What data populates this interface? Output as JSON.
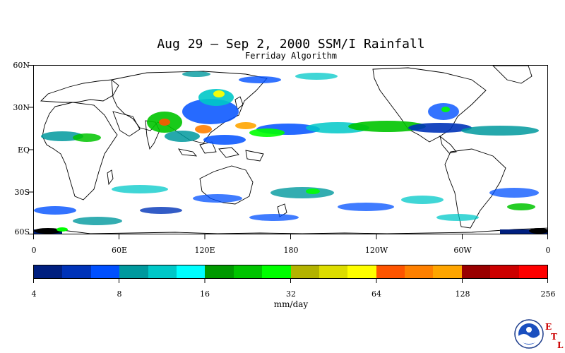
{
  "title": "Aug 29 – Sep 2, 2000 SSM/I Rainfall",
  "subtitle": "Ferriday Algorithm",
  "x_axis_labels": [
    "0",
    "60E",
    "120E",
    "180",
    "120W",
    "60W",
    "0"
  ],
  "y_axis_labels": [
    "60N",
    "30N",
    "EQ",
    "30S",
    "60S"
  ],
  "colorbar": {
    "colors": [
      "#001f7f",
      "#0033b8",
      "#0050ff",
      "#00999e",
      "#00c8c8",
      "#00ffff",
      "#009900",
      "#00c400",
      "#00ff00",
      "#b3b300",
      "#dddd00",
      "#ffff00",
      "#ff5500",
      "#ff8000",
      "#ffa500",
      "#990000",
      "#cc0000",
      "#ff0000"
    ],
    "tick_labels": [
      "4",
      "8",
      "16",
      "32",
      "64",
      "128",
      "256"
    ],
    "units": "mm/day"
  },
  "logo": {
    "name": "NOAA",
    "letters": [
      "E",
      "T",
      "L"
    ]
  }
}
